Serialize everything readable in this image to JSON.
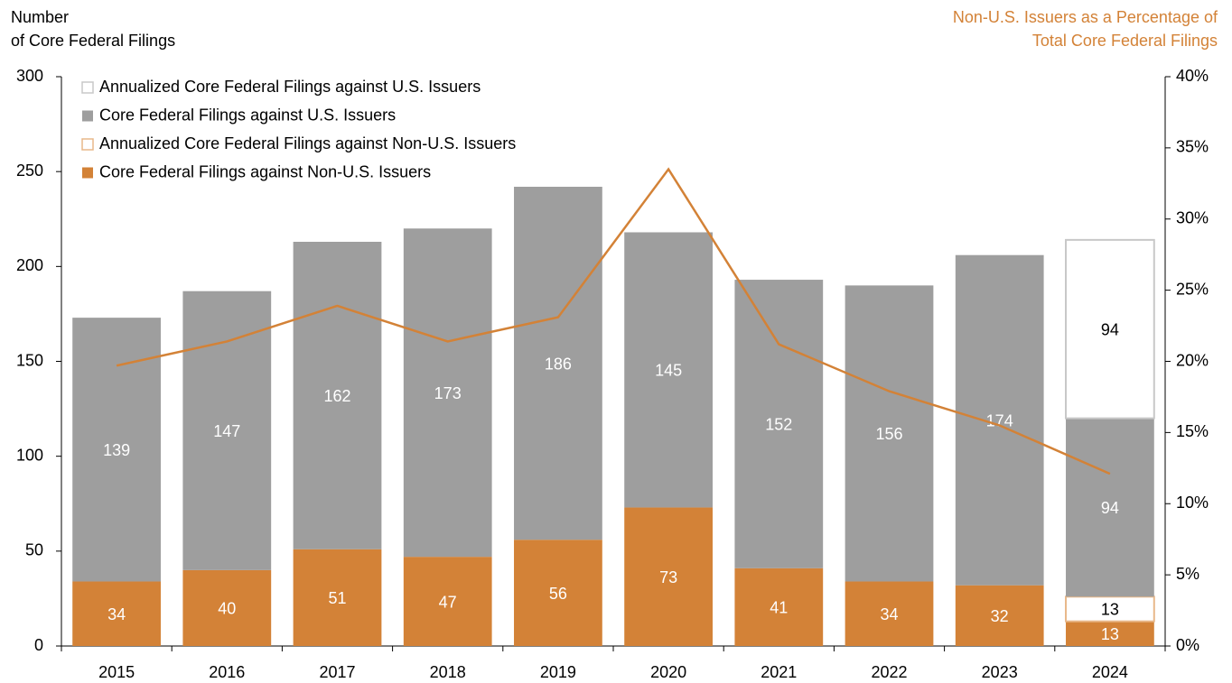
{
  "chart_data": {
    "type": "bar",
    "y_label": [
      "Number",
      "of Core Federal Filings"
    ],
    "y2_label": [
      "Non-U.S. Issuers as a Percentage of",
      "Total Core Federal Filings"
    ],
    "categories": [
      "2015",
      "2016",
      "2017",
      "2018",
      "2019",
      "2020",
      "2021",
      "2022",
      "2023",
      "2024"
    ],
    "stacked": true,
    "series": [
      {
        "name": "Core Federal Filings against Non-U.S. Issuers",
        "color": "#d38237",
        "fill": "#d38237",
        "label_color": "#ffffff",
        "values": [
          34,
          40,
          51,
          47,
          56,
          73,
          41,
          34,
          32,
          13
        ]
      },
      {
        "name": "Annualized Core Federal Filings against Non-U.S. Issuers",
        "color": "#e8b88a",
        "fill": "#ffffff",
        "label_color": "#000000",
        "values": [
          null,
          null,
          null,
          null,
          null,
          null,
          null,
          null,
          null,
          13
        ]
      },
      {
        "name": "Core Federal Filings against U.S. Issuers",
        "color": "#9e9e9e",
        "fill": "#9e9e9e",
        "label_color": "#ffffff",
        "values": [
          139,
          147,
          162,
          173,
          186,
          145,
          152,
          156,
          174,
          94
        ]
      },
      {
        "name": "Annualized Core Federal Filings against U.S. Issuers",
        "color": "#c8c8c8",
        "fill": "#ffffff",
        "label_color": "#000000",
        "values": [
          null,
          null,
          null,
          null,
          null,
          null,
          null,
          null,
          null,
          94
        ]
      },
      {
        "type": "line",
        "axis": "y2",
        "color": "#d38237",
        "values": [
          19.7,
          21.4,
          23.9,
          21.4,
          23.1,
          33.5,
          21.2,
          17.9,
          15.5,
          12.1
        ]
      }
    ],
    "ylim": [
      0,
      300
    ],
    "yticks": [
      0,
      50,
      100,
      150,
      200,
      250,
      300
    ],
    "y2lim": [
      0,
      40
    ],
    "y2ticks": [
      {
        "value": 0,
        "label": "0%"
      },
      {
        "value": 5,
        "label": "5%"
      },
      {
        "value": 10,
        "label": "10%"
      },
      {
        "value": 15,
        "label": "15%"
      },
      {
        "value": 20,
        "label": "20%"
      },
      {
        "value": 25,
        "label": "25%"
      },
      {
        "value": 30,
        "label": "30%"
      },
      {
        "value": 35,
        "label": "35%"
      },
      {
        "value": 40,
        "label": "40%"
      }
    ],
    "legend": "upper left",
    "grid": false
  }
}
